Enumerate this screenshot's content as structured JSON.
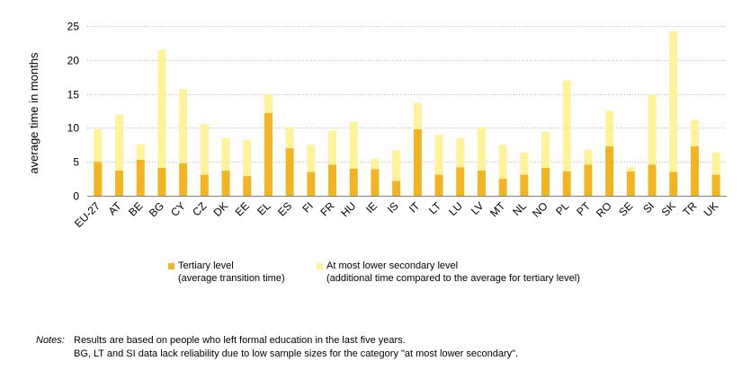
{
  "chart_data": {
    "type": "bar",
    "stacked": true,
    "categories": [
      "EU-27",
      "AT",
      "BE",
      "BG",
      "CY",
      "CZ",
      "DK",
      "EE",
      "EL",
      "ES",
      "FI",
      "FR",
      "HU",
      "IE",
      "IS",
      "IT",
      "LT",
      "LU",
      "LV",
      "MT",
      "NL",
      "NO",
      "PL",
      "PT",
      "RO",
      "SE",
      "SI",
      "SK",
      "TR",
      "UK"
    ],
    "series": [
      {
        "name": "Tertiary level",
        "sub_label": "(average transition time)",
        "color": "#f2b521",
        "values": [
          5.0,
          3.7,
          5.3,
          4.1,
          4.8,
          3.1,
          3.7,
          2.9,
          12.2,
          7.0,
          3.5,
          4.6,
          4.0,
          3.9,
          2.2,
          9.8,
          3.1,
          4.2,
          3.7,
          2.5,
          3.1,
          4.1,
          3.6,
          4.6,
          7.3,
          3.6,
          4.6,
          3.5,
          7.3,
          3.1
        ]
      },
      {
        "name": "At most lower secondary level",
        "sub_label": "(additional time compared to the average for tertiary level)",
        "color": "#fef29a",
        "values": [
          4.8,
          8.3,
          2.3,
          17.4,
          10.9,
          7.5,
          4.8,
          5.3,
          2.8,
          3.1,
          4.0,
          5.0,
          6.9,
          1.5,
          4.5,
          3.9,
          5.9,
          4.3,
          6.4,
          5.0,
          3.3,
          5.3,
          13.4,
          2.2,
          5.2,
          0.6,
          10.3,
          20.7,
          3.9,
          3.3
        ]
      }
    ],
    "ylabel": "average time in months",
    "ylim": [
      0,
      25
    ],
    "yticks": [
      0,
      5,
      10,
      15,
      20,
      25
    ],
    "grid": true,
    "legend_position": "bottom"
  },
  "notes": {
    "label": "Notes:",
    "line1": "Results are based on people who left formal education in the last five years.",
    "line2": "BG, LT and SI data lack reliability due to low sample sizes for the category \"at most lower secondary\"."
  }
}
